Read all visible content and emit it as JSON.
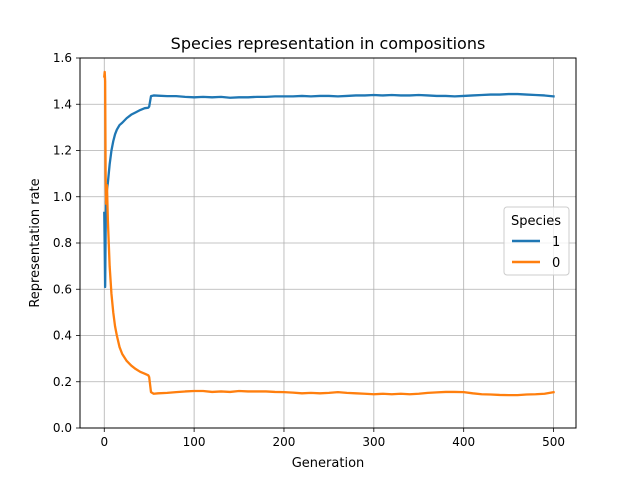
{
  "chart_data": {
    "type": "line",
    "title": "Species representation in compositions",
    "xlabel": "Generation",
    "ylabel": "Representation rate",
    "xlim": [
      -27,
      525
    ],
    "ylim": [
      0.0,
      1.6
    ],
    "x_ticks": [
      0,
      100,
      200,
      300,
      400,
      500
    ],
    "y_ticks": [
      0.0,
      0.2,
      0.4,
      0.6,
      0.8,
      1.0,
      1.2,
      1.4,
      1.6
    ],
    "grid": true,
    "legend": {
      "title": "Species",
      "placement": "center-right"
    },
    "series": [
      {
        "name": "1",
        "color": "#1f77b4",
        "points": [
          [
            0,
            0.93
          ],
          [
            0.5,
            0.78
          ],
          [
            1,
            0.61
          ],
          [
            1.5,
            0.84
          ],
          [
            2,
            0.98
          ],
          [
            3,
            1.03
          ],
          [
            4,
            1.06
          ],
          [
            5,
            1.1
          ],
          [
            6,
            1.14
          ],
          [
            8,
            1.2
          ],
          [
            10,
            1.24
          ],
          [
            12,
            1.27
          ],
          [
            14,
            1.29
          ],
          [
            17,
            1.31
          ],
          [
            20,
            1.32
          ],
          [
            25,
            1.34
          ],
          [
            30,
            1.355
          ],
          [
            35,
            1.365
          ],
          [
            40,
            1.375
          ],
          [
            45,
            1.383
          ],
          [
            49,
            1.385
          ],
          [
            50,
            1.39
          ],
          [
            52,
            1.435
          ],
          [
            55,
            1.438
          ],
          [
            60,
            1.437
          ],
          [
            70,
            1.435
          ],
          [
            80,
            1.435
          ],
          [
            90,
            1.432
          ],
          [
            100,
            1.43
          ],
          [
            110,
            1.432
          ],
          [
            120,
            1.43
          ],
          [
            130,
            1.432
          ],
          [
            140,
            1.428
          ],
          [
            150,
            1.43
          ],
          [
            160,
            1.43
          ],
          [
            170,
            1.432
          ],
          [
            180,
            1.432
          ],
          [
            190,
            1.434
          ],
          [
            200,
            1.434
          ],
          [
            210,
            1.434
          ],
          [
            220,
            1.436
          ],
          [
            230,
            1.434
          ],
          [
            240,
            1.436
          ],
          [
            250,
            1.436
          ],
          [
            260,
            1.434
          ],
          [
            270,
            1.436
          ],
          [
            280,
            1.438
          ],
          [
            290,
            1.438
          ],
          [
            300,
            1.44
          ],
          [
            310,
            1.438
          ],
          [
            320,
            1.44
          ],
          [
            330,
            1.438
          ],
          [
            340,
            1.438
          ],
          [
            350,
            1.44
          ],
          [
            360,
            1.438
          ],
          [
            370,
            1.436
          ],
          [
            380,
            1.436
          ],
          [
            390,
            1.434
          ],
          [
            400,
            1.436
          ],
          [
            410,
            1.438
          ],
          [
            420,
            1.44
          ],
          [
            430,
            1.442
          ],
          [
            440,
            1.442
          ],
          [
            450,
            1.444
          ],
          [
            460,
            1.444
          ],
          [
            470,
            1.442
          ],
          [
            480,
            1.44
          ],
          [
            490,
            1.438
          ],
          [
            500,
            1.434
          ]
        ]
      },
      {
        "name": "0",
        "color": "#ff7f0e",
        "points": [
          [
            0,
            1.52
          ],
          [
            0.5,
            1.54
          ],
          [
            1,
            1.5
          ],
          [
            1.5,
            1.1
          ],
          [
            2,
            0.97
          ],
          [
            3,
            1.05
          ],
          [
            4,
            0.9
          ],
          [
            5,
            0.8
          ],
          [
            6,
            0.7
          ],
          [
            8,
            0.58
          ],
          [
            10,
            0.5
          ],
          [
            12,
            0.44
          ],
          [
            14,
            0.4
          ],
          [
            17,
            0.35
          ],
          [
            20,
            0.32
          ],
          [
            25,
            0.29
          ],
          [
            30,
            0.27
          ],
          [
            35,
            0.255
          ],
          [
            40,
            0.243
          ],
          [
            45,
            0.235
          ],
          [
            49,
            0.228
          ],
          [
            50,
            0.22
          ],
          [
            52,
            0.155
          ],
          [
            55,
            0.148
          ],
          [
            60,
            0.15
          ],
          [
            70,
            0.152
          ],
          [
            80,
            0.155
          ],
          [
            90,
            0.158
          ],
          [
            100,
            0.16
          ],
          [
            110,
            0.16
          ],
          [
            120,
            0.156
          ],
          [
            130,
            0.158
          ],
          [
            140,
            0.156
          ],
          [
            150,
            0.16
          ],
          [
            160,
            0.158
          ],
          [
            170,
            0.158
          ],
          [
            180,
            0.158
          ],
          [
            190,
            0.156
          ],
          [
            200,
            0.155
          ],
          [
            210,
            0.153
          ],
          [
            220,
            0.15
          ],
          [
            230,
            0.152
          ],
          [
            240,
            0.15
          ],
          [
            250,
            0.152
          ],
          [
            260,
            0.155
          ],
          [
            270,
            0.152
          ],
          [
            280,
            0.15
          ],
          [
            290,
            0.148
          ],
          [
            300,
            0.146
          ],
          [
            310,
            0.148
          ],
          [
            320,
            0.146
          ],
          [
            330,
            0.148
          ],
          [
            340,
            0.146
          ],
          [
            350,
            0.148
          ],
          [
            360,
            0.152
          ],
          [
            370,
            0.154
          ],
          [
            380,
            0.156
          ],
          [
            390,
            0.156
          ],
          [
            400,
            0.155
          ],
          [
            410,
            0.15
          ],
          [
            420,
            0.146
          ],
          [
            430,
            0.145
          ],
          [
            440,
            0.143
          ],
          [
            450,
            0.142
          ],
          [
            460,
            0.142
          ],
          [
            470,
            0.145
          ],
          [
            480,
            0.146
          ],
          [
            490,
            0.148
          ],
          [
            500,
            0.155
          ]
        ]
      }
    ]
  }
}
